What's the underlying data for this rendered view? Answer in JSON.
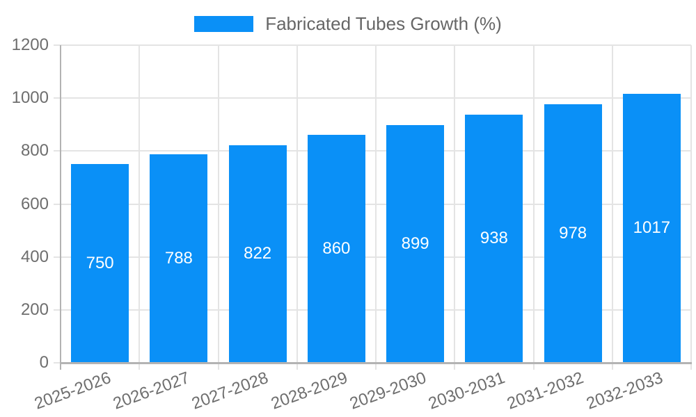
{
  "chart_data": {
    "type": "bar",
    "title": "",
    "legend": "Fabricated Tubes Growth (%)",
    "legend_position": "top",
    "categories": [
      "2025-2026",
      "2026-2027",
      "2027-2028",
      "2028-2029",
      "2029-2030",
      "2030-2031",
      "2031-2032",
      "2032-2033"
    ],
    "values": [
      750,
      788,
      822,
      860,
      899,
      938,
      978,
      1017
    ],
    "xlabel": "",
    "ylabel": "",
    "ylim": [
      0,
      1200
    ],
    "yticks": [
      0,
      200,
      400,
      600,
      800,
      1000,
      1200
    ],
    "grid": true,
    "x_label_rotation_deg": -20,
    "colors": {
      "bar": "#0a90f7",
      "grid": "#e4e4e4",
      "axis": "#b3b3b3",
      "tick_text": "#6e6e6e",
      "value_text": "#ffffff",
      "legend_text": "#666666"
    }
  }
}
